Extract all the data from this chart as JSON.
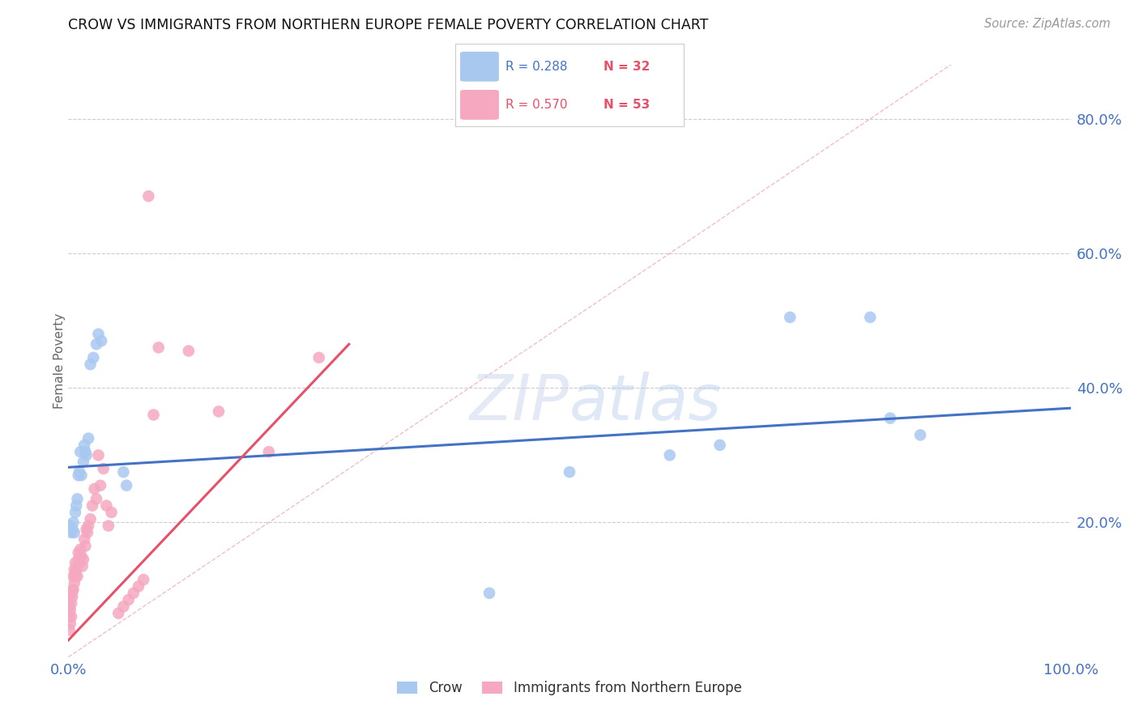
{
  "title": "CROW VS IMMIGRANTS FROM NORTHERN EUROPE FEMALE POVERTY CORRELATION CHART",
  "source": "Source: ZipAtlas.com",
  "ylabel": "Female Poverty",
  "crow_color": "#a8c8f0",
  "imm_color": "#f5a8c0",
  "crow_line_color": "#4472c4",
  "imm_line_color": "#e8506a",
  "diagonal_color": "#f0b8c0",
  "background": "#ffffff",
  "crow_points_x": [
    0.002,
    0.003,
    0.004,
    0.005,
    0.006,
    0.007,
    0.008,
    0.009,
    0.01,
    0.011,
    0.012,
    0.013,
    0.015,
    0.016,
    0.017,
    0.018,
    0.02,
    0.022,
    0.025,
    0.028,
    0.03,
    0.033,
    0.055,
    0.058,
    0.42,
    0.5,
    0.6,
    0.65,
    0.72,
    0.8,
    0.82,
    0.85
  ],
  "crow_points_y": [
    0.195,
    0.185,
    0.19,
    0.2,
    0.185,
    0.215,
    0.225,
    0.235,
    0.27,
    0.275,
    0.305,
    0.27,
    0.29,
    0.315,
    0.305,
    0.3,
    0.325,
    0.435,
    0.445,
    0.465,
    0.48,
    0.47,
    0.275,
    0.255,
    0.095,
    0.275,
    0.3,
    0.315,
    0.505,
    0.505,
    0.355,
    0.33
  ],
  "imm_points_x": [
    0.001,
    0.001,
    0.001,
    0.002,
    0.002,
    0.002,
    0.003,
    0.003,
    0.004,
    0.004,
    0.005,
    0.005,
    0.006,
    0.006,
    0.007,
    0.007,
    0.008,
    0.009,
    0.01,
    0.01,
    0.011,
    0.012,
    0.013,
    0.014,
    0.015,
    0.016,
    0.017,
    0.018,
    0.019,
    0.02,
    0.022,
    0.024,
    0.026,
    0.028,
    0.03,
    0.032,
    0.035,
    0.038,
    0.04,
    0.043,
    0.05,
    0.055,
    0.06,
    0.065,
    0.07,
    0.075,
    0.08,
    0.085,
    0.09,
    0.12,
    0.15,
    0.2,
    0.25
  ],
  "imm_points_y": [
    0.04,
    0.06,
    0.075,
    0.05,
    0.07,
    0.09,
    0.06,
    0.08,
    0.09,
    0.1,
    0.1,
    0.12,
    0.11,
    0.13,
    0.12,
    0.14,
    0.13,
    0.12,
    0.145,
    0.155,
    0.14,
    0.16,
    0.15,
    0.135,
    0.145,
    0.175,
    0.165,
    0.19,
    0.185,
    0.195,
    0.205,
    0.225,
    0.25,
    0.235,
    0.3,
    0.255,
    0.28,
    0.225,
    0.195,
    0.215,
    0.065,
    0.075,
    0.085,
    0.095,
    0.105,
    0.115,
    0.685,
    0.36,
    0.46,
    0.455,
    0.365,
    0.305,
    0.445
  ],
  "crow_trendline": [
    0.0,
    1.0,
    0.282,
    0.37
  ],
  "imm_trendline": [
    0.0,
    0.28,
    0.025,
    0.465
  ],
  "legend_r1": "R = 0.288",
  "legend_n1": "N = 32",
  "legend_r2": "R = 0.570",
  "legend_n2": "N = 53",
  "r_color": "#4472c4",
  "n_color": "#e8506a",
  "yticks": [
    0.0,
    0.2,
    0.4,
    0.6,
    0.8
  ],
  "ytick_labels": [
    "",
    "20.0%",
    "40.0%",
    "60.0%",
    "80.0%"
  ],
  "xlim": [
    0.0,
    1.0
  ],
  "ylim": [
    0.0,
    0.88
  ]
}
